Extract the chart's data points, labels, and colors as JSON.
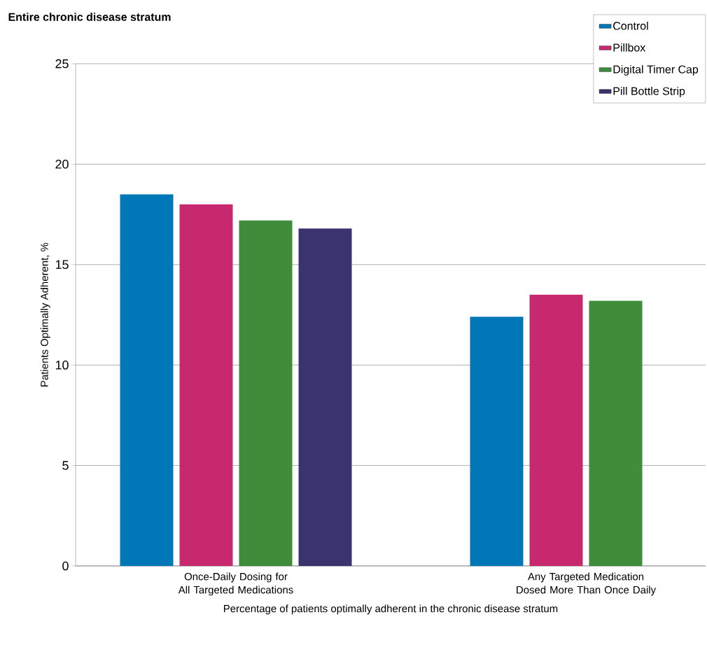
{
  "chart_data": {
    "type": "bar",
    "title": "Entire chronic disease stratum",
    "xlabel": "Percentage of patients optimally adherent in the chronic disease stratum",
    "ylabel": "Patients Optimally Adherent, %",
    "categories": [
      "Once-Daily Dosing for All Targeted Medications",
      "Any Targeted Medication Dosed More Than Once Daily"
    ],
    "series": [
      {
        "name": "Control",
        "color": "#0077b6",
        "values": [
          18.5,
          12.4
        ]
      },
      {
        "name": "Pillbox",
        "color": "#c8286e",
        "values": [
          18.0,
          13.5
        ]
      },
      {
        "name": "Digital Timer Cap",
        "color": "#3f8c3a",
        "values": [
          17.2,
          13.2
        ]
      },
      {
        "name": "Pill Bottle Strip",
        "color": "#3a3370",
        "values": [
          16.8,
          null
        ]
      }
    ],
    "ylim": [
      0,
      25
    ],
    "yticks": [
      0,
      5,
      10,
      15,
      20,
      25
    ],
    "grid": "y",
    "legend": "top right"
  }
}
